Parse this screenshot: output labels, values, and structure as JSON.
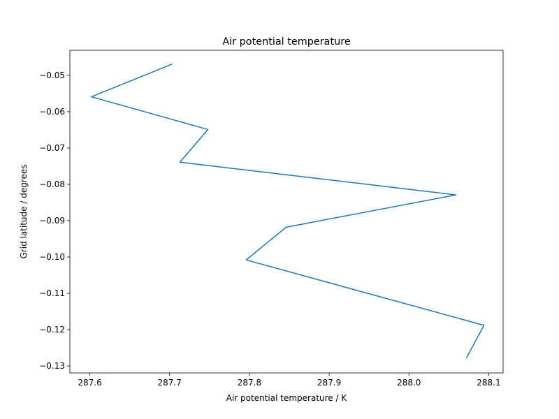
{
  "chart_data": {
    "type": "line",
    "title": "Air potential temperature",
    "xlabel": "Air potential temperature / K",
    "ylabel": "Grid latitude / degrees",
    "xlim": [
      287.575,
      288.118
    ],
    "ylim": [
      -0.1319,
      -0.0431
    ],
    "xticks": [
      287.6,
      287.7,
      287.8,
      287.9,
      288.0,
      288.1
    ],
    "xtick_labels": [
      "287.6",
      "287.7",
      "287.8",
      "287.9",
      "288.0",
      "288.1"
    ],
    "yticks": [
      -0.05,
      -0.06,
      -0.07,
      -0.08,
      -0.09,
      -0.1,
      -0.11,
      -0.12,
      -0.13
    ],
    "ytick_labels": [
      "−0.05",
      "−0.06",
      "−0.07",
      "−0.08",
      "−0.09",
      "−0.10",
      "−0.11",
      "−0.12",
      "−0.13"
    ],
    "grid": false,
    "series": [
      {
        "color": "#1f77b4",
        "x": [
          287.703,
          287.602,
          287.748,
          287.713,
          288.059,
          287.846,
          287.796,
          288.094,
          288.072
        ],
        "y": [
          -0.0469,
          -0.0559,
          -0.0649,
          -0.0739,
          -0.0829,
          -0.0918,
          -0.1008,
          -0.1188,
          -0.1278
        ]
      }
    ]
  }
}
